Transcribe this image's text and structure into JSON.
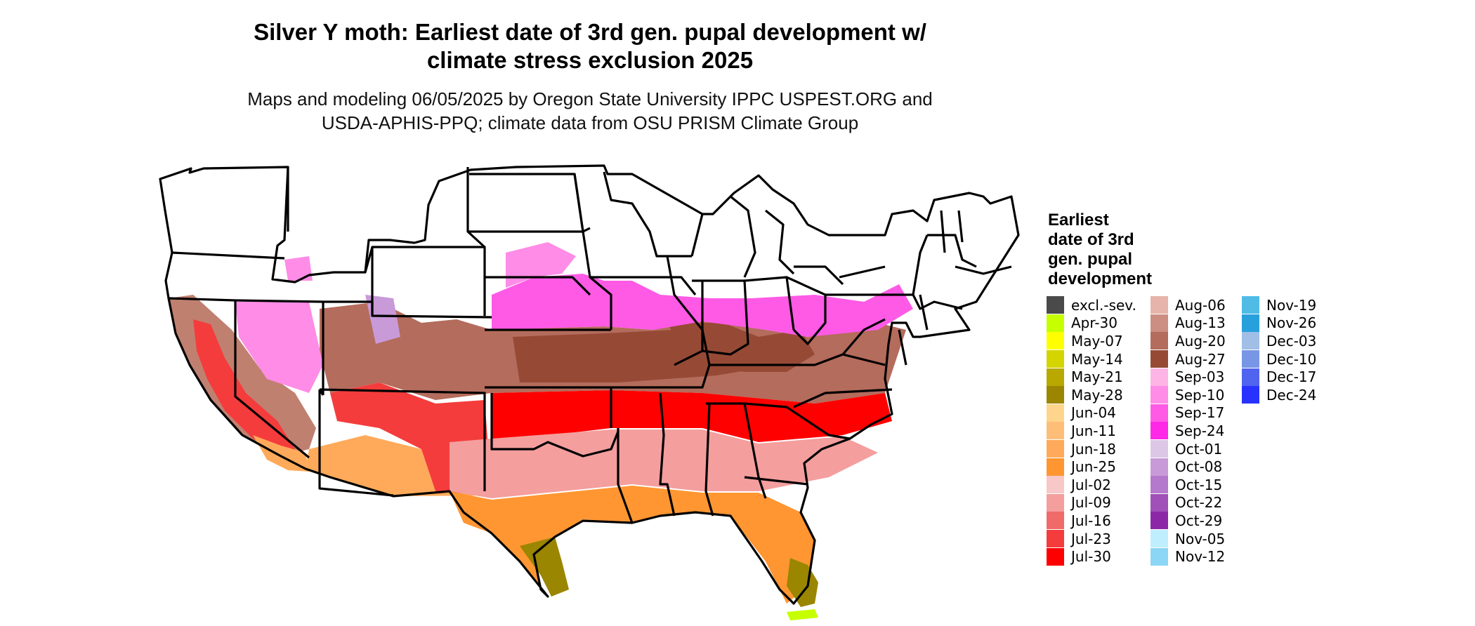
{
  "title_lines": [
    "Silver Y moth: Earliest date of 3rd gen. pupal development w/",
    "climate stress exclusion 2025"
  ],
  "subtitle_lines": [
    "Maps and modeling 06/05/2025 by Oregon State University IPPC USPEST.ORG and",
    "USDA-APHIS-PPQ; climate data from OSU PRISM Climate Group"
  ],
  "legend": {
    "title_lines": [
      "Earliest",
      "date of 3rd",
      "gen. pupal",
      "development"
    ],
    "columns": [
      [
        {
          "label": "excl.-sev.",
          "color": "#4a4a4a"
        },
        {
          "label": "Apr-30",
          "color": "#c6ff00"
        },
        {
          "label": "May-07",
          "color": "#ffff00"
        },
        {
          "label": "May-14",
          "color": "#d4d400"
        },
        {
          "label": "May-21",
          "color": "#b8a800"
        },
        {
          "label": "May-28",
          "color": "#9a8600"
        },
        {
          "label": "Jun-04",
          "color": "#ffd48c"
        },
        {
          "label": "Jun-11",
          "color": "#ffbe78"
        },
        {
          "label": "Jun-18",
          "color": "#ffaa5a"
        },
        {
          "label": "Jun-25",
          "color": "#ff9632"
        },
        {
          "label": "Jul-02",
          "color": "#f8c8c8"
        },
        {
          "label": "Jul-09",
          "color": "#f49e9e"
        },
        {
          "label": "Jul-16",
          "color": "#f06a6a"
        },
        {
          "label": "Jul-23",
          "color": "#f43c3c"
        },
        {
          "label": "Jul-30",
          "color": "#ff0000"
        }
      ],
      [
        {
          "label": "Aug-06",
          "color": "#e6b4aa"
        },
        {
          "label": "Aug-13",
          "color": "#cc8e82"
        },
        {
          "label": "Aug-20",
          "color": "#b46c5c"
        },
        {
          "label": "Aug-27",
          "color": "#964a36"
        },
        {
          "label": "Sep-03",
          "color": "#ffb4e6"
        },
        {
          "label": "Sep-10",
          "color": "#ff8ce6"
        },
        {
          "label": "Sep-17",
          "color": "#ff5ae6"
        },
        {
          "label": "Sep-24",
          "color": "#ff28e6"
        },
        {
          "label": "Oct-01",
          "color": "#dcc8e6"
        },
        {
          "label": "Oct-08",
          "color": "#c89ad8"
        },
        {
          "label": "Oct-15",
          "color": "#b478cc"
        },
        {
          "label": "Oct-22",
          "color": "#a050b8"
        },
        {
          "label": "Oct-29",
          "color": "#8c28a8"
        },
        {
          "label": "Nov-05",
          "color": "#bfeeff"
        },
        {
          "label": "Nov-12",
          "color": "#8cd6f5"
        }
      ],
      [
        {
          "label": "Nov-19",
          "color": "#50bce6"
        },
        {
          "label": "Nov-26",
          "color": "#28a0dc"
        },
        {
          "label": "Dec-03",
          "color": "#a0bee6"
        },
        {
          "label": "Dec-10",
          "color": "#7896e6"
        },
        {
          "label": "Dec-17",
          "color": "#5064f0"
        },
        {
          "label": "Dec-24",
          "color": "#2832ff"
        }
      ]
    ]
  }
}
